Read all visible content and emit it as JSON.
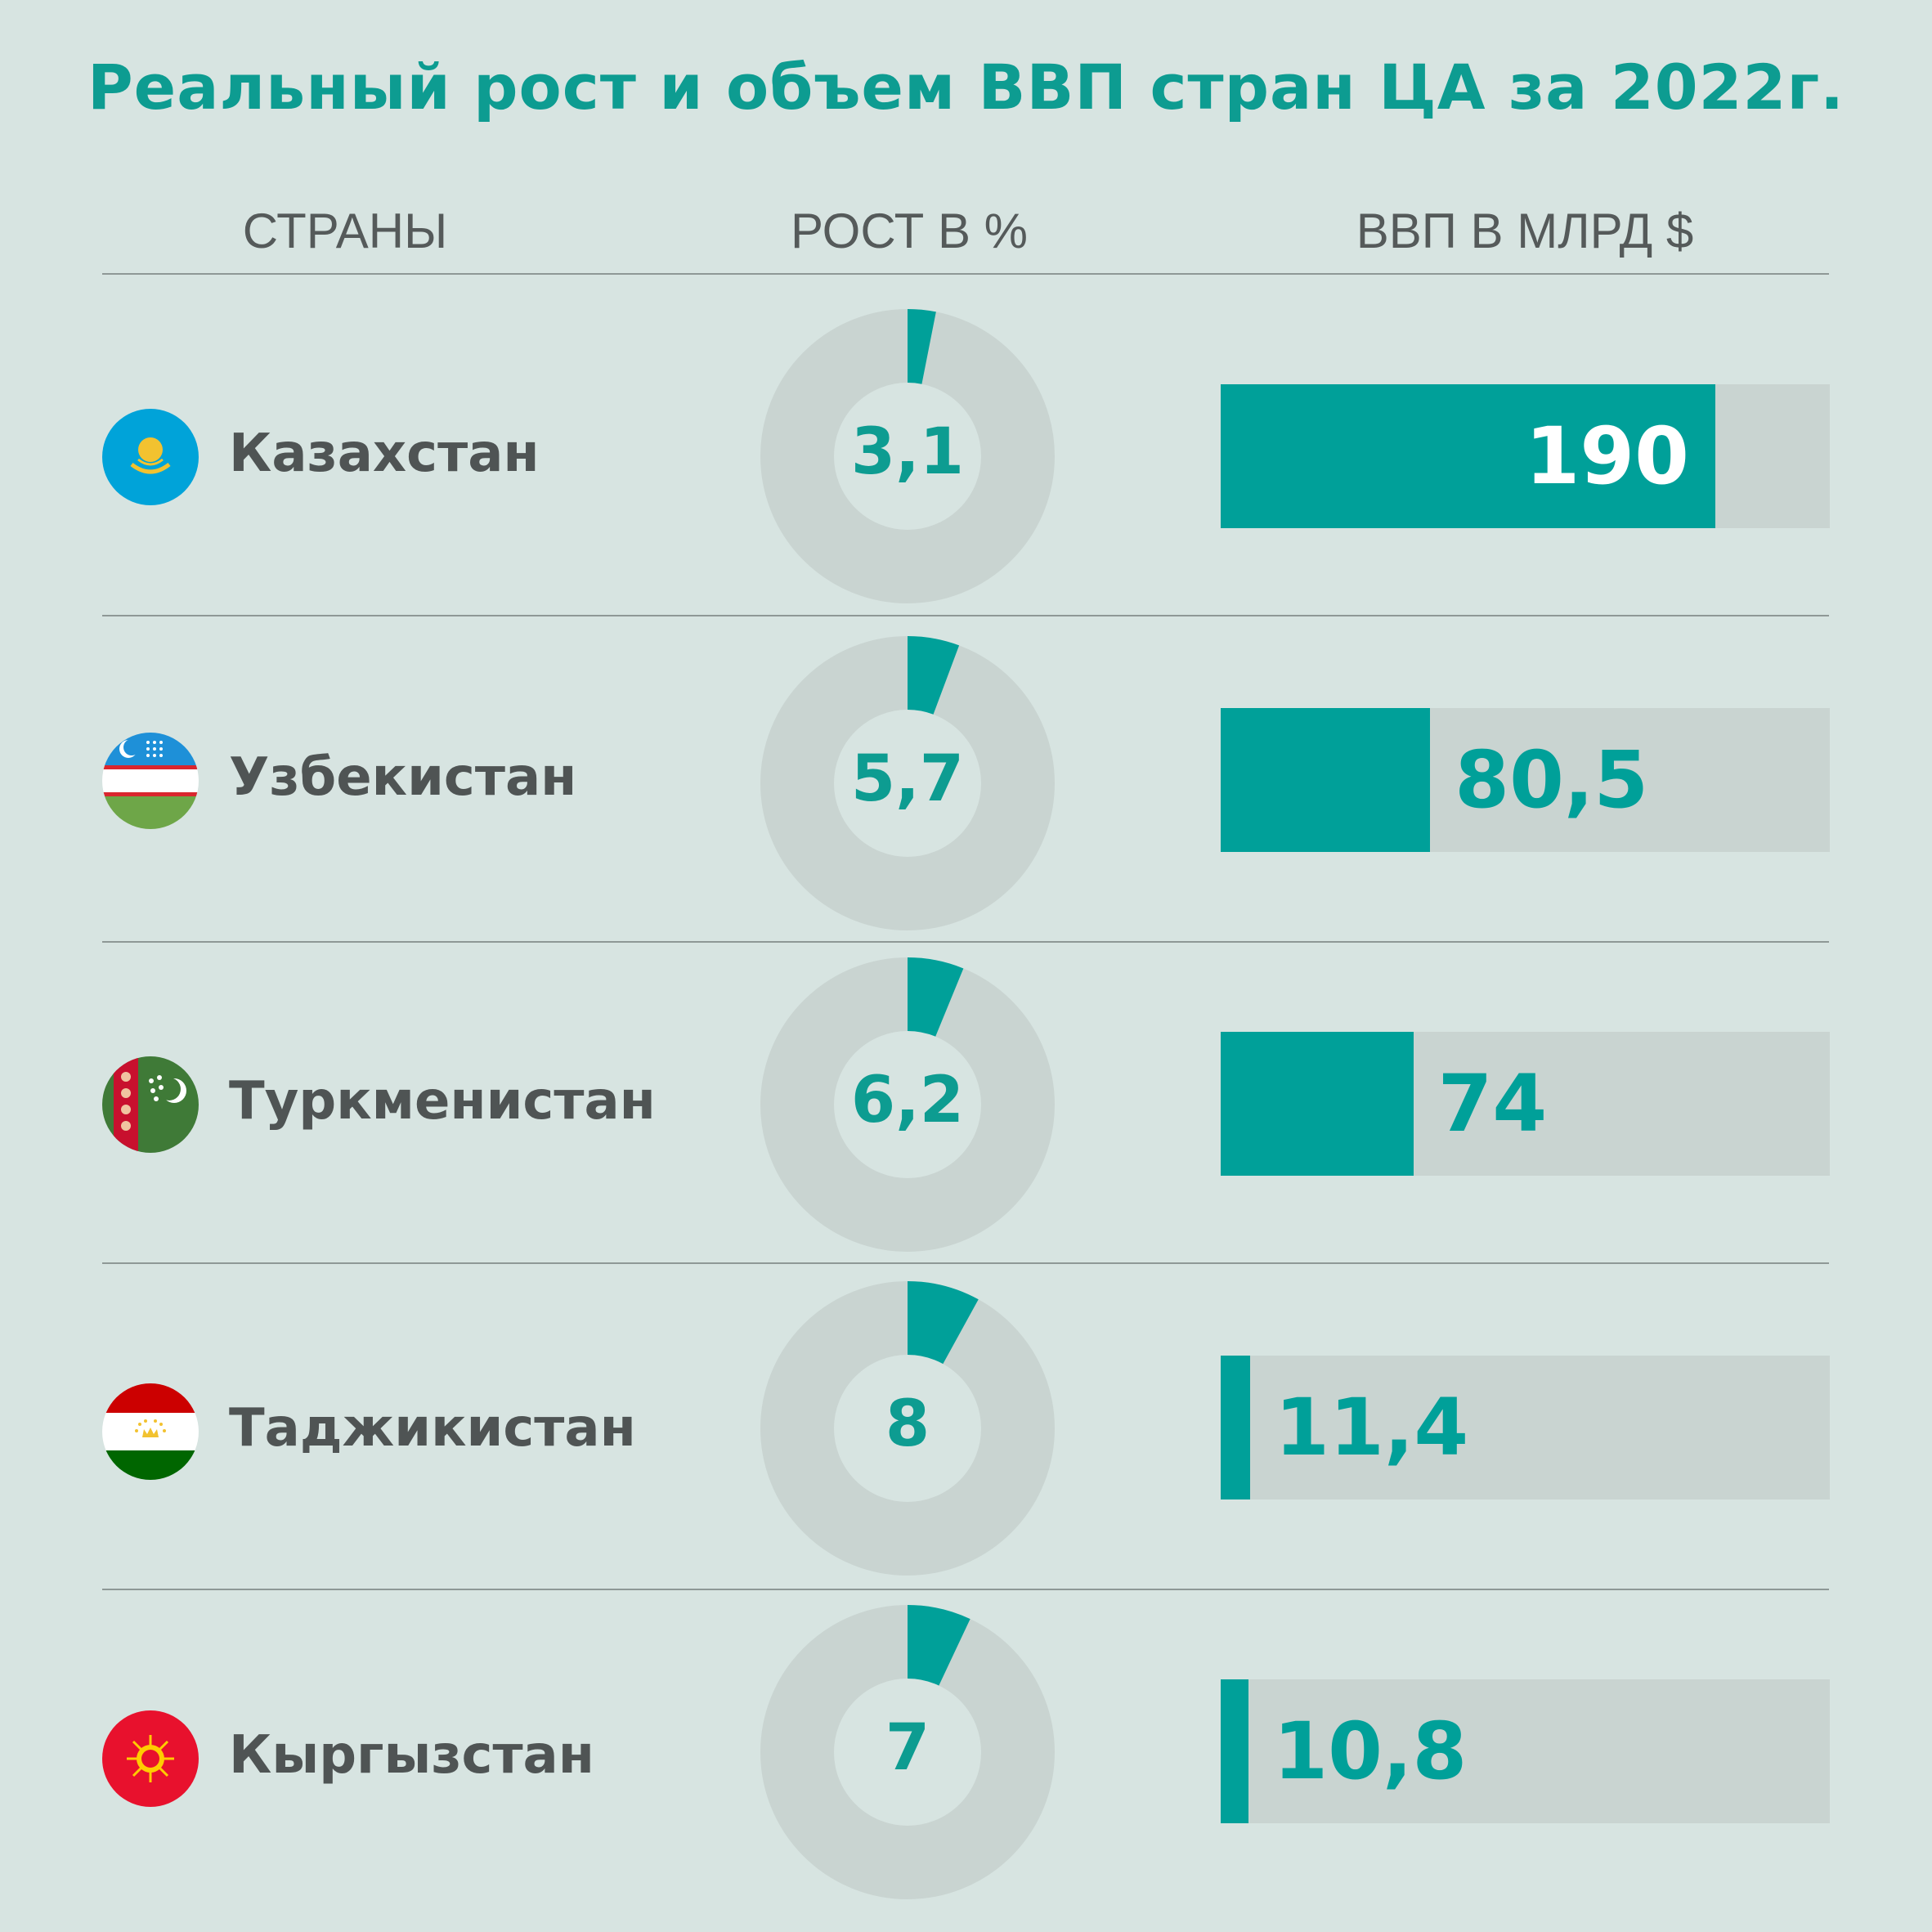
{
  "title": "Реальный рост и объем ВВП стран ЦА за 2022г.",
  "headers": {
    "countries": "СТРАНЫ",
    "growth": "РОСТ В %",
    "gdp": "ВВП В МЛРД $"
  },
  "colors": {
    "accent": "#00a099",
    "track": "#c9d4d1",
    "background": "#d7e4e1",
    "text": "#4f5454"
  },
  "countries": [
    {
      "name": "Казахстан",
      "flag_icon": "kazakhstan-flag-icon",
      "growth_label": "3,1",
      "gdp_label": "190"
    },
    {
      "name": "Узбекистан",
      "flag_icon": "uzbekistan-flag-icon",
      "growth_label": "5,7",
      "gdp_label": "80,5"
    },
    {
      "name": "Туркменистан",
      "flag_icon": "turkmenistan-flag-icon",
      "growth_label": "6,2",
      "gdp_label": "74"
    },
    {
      "name": "Таджикистан",
      "flag_icon": "tajikistan-flag-icon",
      "growth_label": "8",
      "gdp_label": "11,4"
    },
    {
      "name": "Кыргызстан",
      "flag_icon": "kyrgyzstan-flag-icon",
      "growth_label": "7",
      "gdp_label": "10,8"
    }
  ],
  "chart_data": [
    {
      "type": "pie",
      "title": "",
      "categories": [
        "Казахстан",
        "Узбекистан",
        "Туркменистан",
        "Таджикистан",
        "Кыргызстан"
      ],
      "values": [
        3.1,
        5.7,
        6.2,
        8,
        7
      ],
      "unit": "%"
    },
    {
      "type": "bar",
      "title": "",
      "categories": [
        "Казахстан",
        "Узбекистан",
        "Туркменистан",
        "Таджикистан",
        "Кыргызстан"
      ],
      "values": [
        190,
        80.5,
        74,
        11.4,
        10.8
      ],
      "xlim": [
        0,
        234
      ],
      "unit": "млрд $"
    }
  ]
}
